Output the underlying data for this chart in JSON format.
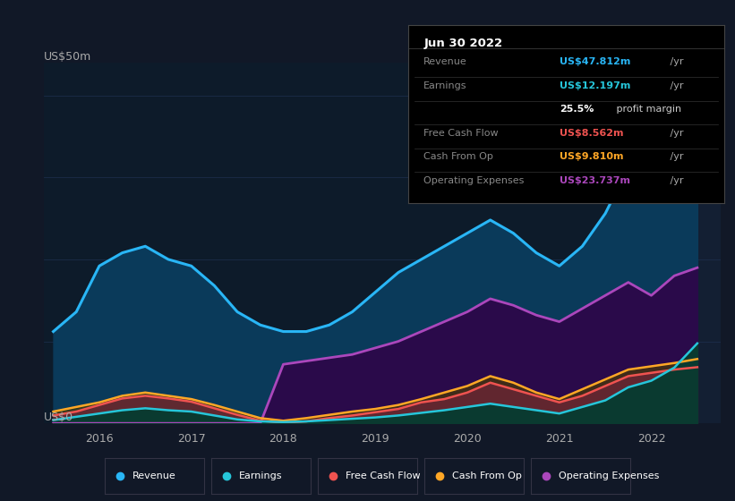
{
  "bg_color": "#111827",
  "plot_bg_color": "#0d1b2a",
  "grid_color": "#1e3050",
  "title_label": "US$50m",
  "zero_label": "US$0",
  "x_years": [
    2015.5,
    2015.75,
    2016.0,
    2016.25,
    2016.5,
    2016.75,
    2017.0,
    2017.25,
    2017.5,
    2017.75,
    2018.0,
    2018.25,
    2018.5,
    2018.75,
    2019.0,
    2019.25,
    2019.5,
    2019.75,
    2020.0,
    2020.25,
    2020.5,
    2020.75,
    2021.0,
    2021.25,
    2021.5,
    2021.75,
    2022.0,
    2022.25,
    2022.5
  ],
  "revenue": [
    14,
    17,
    24,
    26,
    27,
    25,
    24,
    21,
    17,
    15,
    14,
    14,
    15,
    17,
    20,
    23,
    25,
    27,
    29,
    31,
    29,
    26,
    24,
    27,
    32,
    39,
    41,
    45,
    47.812
  ],
  "earnings": [
    0.5,
    1.0,
    1.5,
    2.0,
    2.3,
    2.0,
    1.8,
    1.2,
    0.6,
    0.3,
    0.2,
    0.3,
    0.5,
    0.7,
    0.9,
    1.2,
    1.6,
    2.0,
    2.5,
    3.0,
    2.5,
    2.0,
    1.5,
    2.5,
    3.5,
    5.5,
    6.5,
    8.5,
    12.197
  ],
  "free_cash_flow": [
    1.2,
    1.8,
    2.8,
    3.8,
    4.2,
    3.8,
    3.3,
    2.3,
    1.3,
    0.4,
    0.1,
    0.3,
    0.8,
    1.2,
    1.7,
    2.2,
    3.2,
    3.7,
    4.7,
    6.2,
    5.2,
    4.2,
    3.2,
    4.2,
    5.7,
    7.2,
    7.7,
    8.2,
    8.562
  ],
  "cash_from_op": [
    1.8,
    2.5,
    3.2,
    4.2,
    4.7,
    4.2,
    3.7,
    2.8,
    1.8,
    0.8,
    0.4,
    0.8,
    1.3,
    1.8,
    2.2,
    2.8,
    3.7,
    4.7,
    5.7,
    7.2,
    6.2,
    4.7,
    3.7,
    5.2,
    6.7,
    8.2,
    8.7,
    9.2,
    9.81
  ],
  "op_expenses": [
    0,
    0,
    0,
    0,
    0,
    0,
    0,
    0,
    0,
    0,
    9.0,
    9.5,
    10.0,
    10.5,
    11.5,
    12.5,
    14.0,
    15.5,
    17.0,
    19.0,
    18.0,
    16.5,
    15.5,
    17.5,
    19.5,
    21.5,
    19.5,
    22.5,
    23.737
  ],
  "revenue_color": "#29b6f6",
  "revenue_fill": "#0a3a5a",
  "earnings_color": "#26c6da",
  "earnings_fill": "#0a3a30",
  "fcf_color": "#ef5350",
  "fcf_fill": "#6a2535",
  "cashop_color": "#ffa726",
  "cashop_fill": "#4a3a05",
  "opex_color": "#ab47bc",
  "opex_fill": "#2a0a4a",
  "ylim": [
    0,
    55
  ],
  "xlim": [
    2015.4,
    2022.75
  ],
  "xticks": [
    2016,
    2017,
    2018,
    2019,
    2020,
    2021,
    2022
  ],
  "vline_x": 2021.9,
  "tooltip_title": "Jun 30 2022",
  "tooltip_rows": [
    {
      "label": "Revenue",
      "value": "US$47.812m",
      "value_color": "#29b6f6",
      "label_color": "#888888"
    },
    {
      "label": "Earnings",
      "value": "US$12.197m",
      "value_color": "#26c6da",
      "label_color": "#888888"
    },
    {
      "label": "",
      "value": "25.5%",
      "suffix": " profit margin",
      "value_color": "#ffffff",
      "label_color": "#888888"
    },
    {
      "label": "Free Cash Flow",
      "value": "US$8.562m",
      "value_color": "#ef5350",
      "label_color": "#888888"
    },
    {
      "label": "Cash From Op",
      "value": "US$9.810m",
      "value_color": "#ffa726",
      "label_color": "#888888"
    },
    {
      "label": "Operating Expenses",
      "value": "US$23.737m",
      "value_color": "#ab47bc",
      "label_color": "#888888"
    }
  ],
  "legend_items": [
    {
      "label": "Revenue",
      "color": "#29b6f6"
    },
    {
      "label": "Earnings",
      "color": "#26c6da"
    },
    {
      "label": "Free Cash Flow",
      "color": "#ef5350"
    },
    {
      "label": "Cash From Op",
      "color": "#ffa726"
    },
    {
      "label": "Operating Expenses",
      "color": "#ab47bc"
    }
  ]
}
